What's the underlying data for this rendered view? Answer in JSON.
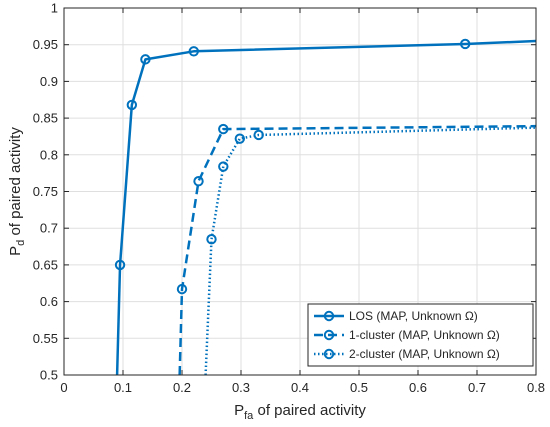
{
  "chart_data": {
    "type": "line",
    "xlabel": {
      "main": "P",
      "sub": "fa",
      "rest": " of paired activity"
    },
    "ylabel": {
      "main": "P",
      "sub": "d",
      "rest": " of paired activity"
    },
    "xlim": [
      0,
      0.8
    ],
    "ylim": [
      0.5,
      1
    ],
    "xticks": [
      "0",
      "0.1",
      "0.2",
      "0.3",
      "0.4",
      "0.5",
      "0.6",
      "0.7",
      "0.8"
    ],
    "yticks": [
      "0.5",
      "0.55",
      "0.6",
      "0.65",
      "0.7",
      "0.75",
      "0.8",
      "0.85",
      "0.9",
      "0.95",
      "1"
    ],
    "grid": true,
    "legend_position": "bottom-right",
    "colors": {
      "series": "#0072BD",
      "grid": "#dfdfdf",
      "axis": "#262626"
    },
    "series": [
      {
        "name": "LOS (MAP, Unknown Ω)",
        "style": "solid",
        "x": [
          0.09,
          0.095,
          0.115,
          0.138,
          0.22,
          0.68,
          0.8
        ],
        "y": [
          0.5,
          0.65,
          0.868,
          0.93,
          0.941,
          0.951,
          0.955
        ],
        "markers_x": [
          0.095,
          0.115,
          0.138,
          0.22,
          0.68
        ],
        "markers_y": [
          0.65,
          0.868,
          0.93,
          0.941,
          0.951
        ]
      },
      {
        "name": "1-cluster (MAP, Unknown Ω)",
        "style": "dashed",
        "x": [
          0.196,
          0.2,
          0.228,
          0.27,
          0.8
        ],
        "y": [
          0.5,
          0.617,
          0.764,
          0.835,
          0.839
        ],
        "markers_x": [
          0.2,
          0.228,
          0.27
        ],
        "markers_y": [
          0.617,
          0.764,
          0.835
        ]
      },
      {
        "name": "2-cluster (MAP, Unknown Ω)",
        "style": "dotted",
        "x": [
          0.24,
          0.25,
          0.27,
          0.298,
          0.33,
          0.8
        ],
        "y": [
          0.5,
          0.685,
          0.784,
          0.822,
          0.827,
          0.837
        ],
        "markers_x": [
          0.25,
          0.27,
          0.298,
          0.33
        ],
        "markers_y": [
          0.685,
          0.784,
          0.822,
          0.827
        ]
      }
    ]
  }
}
